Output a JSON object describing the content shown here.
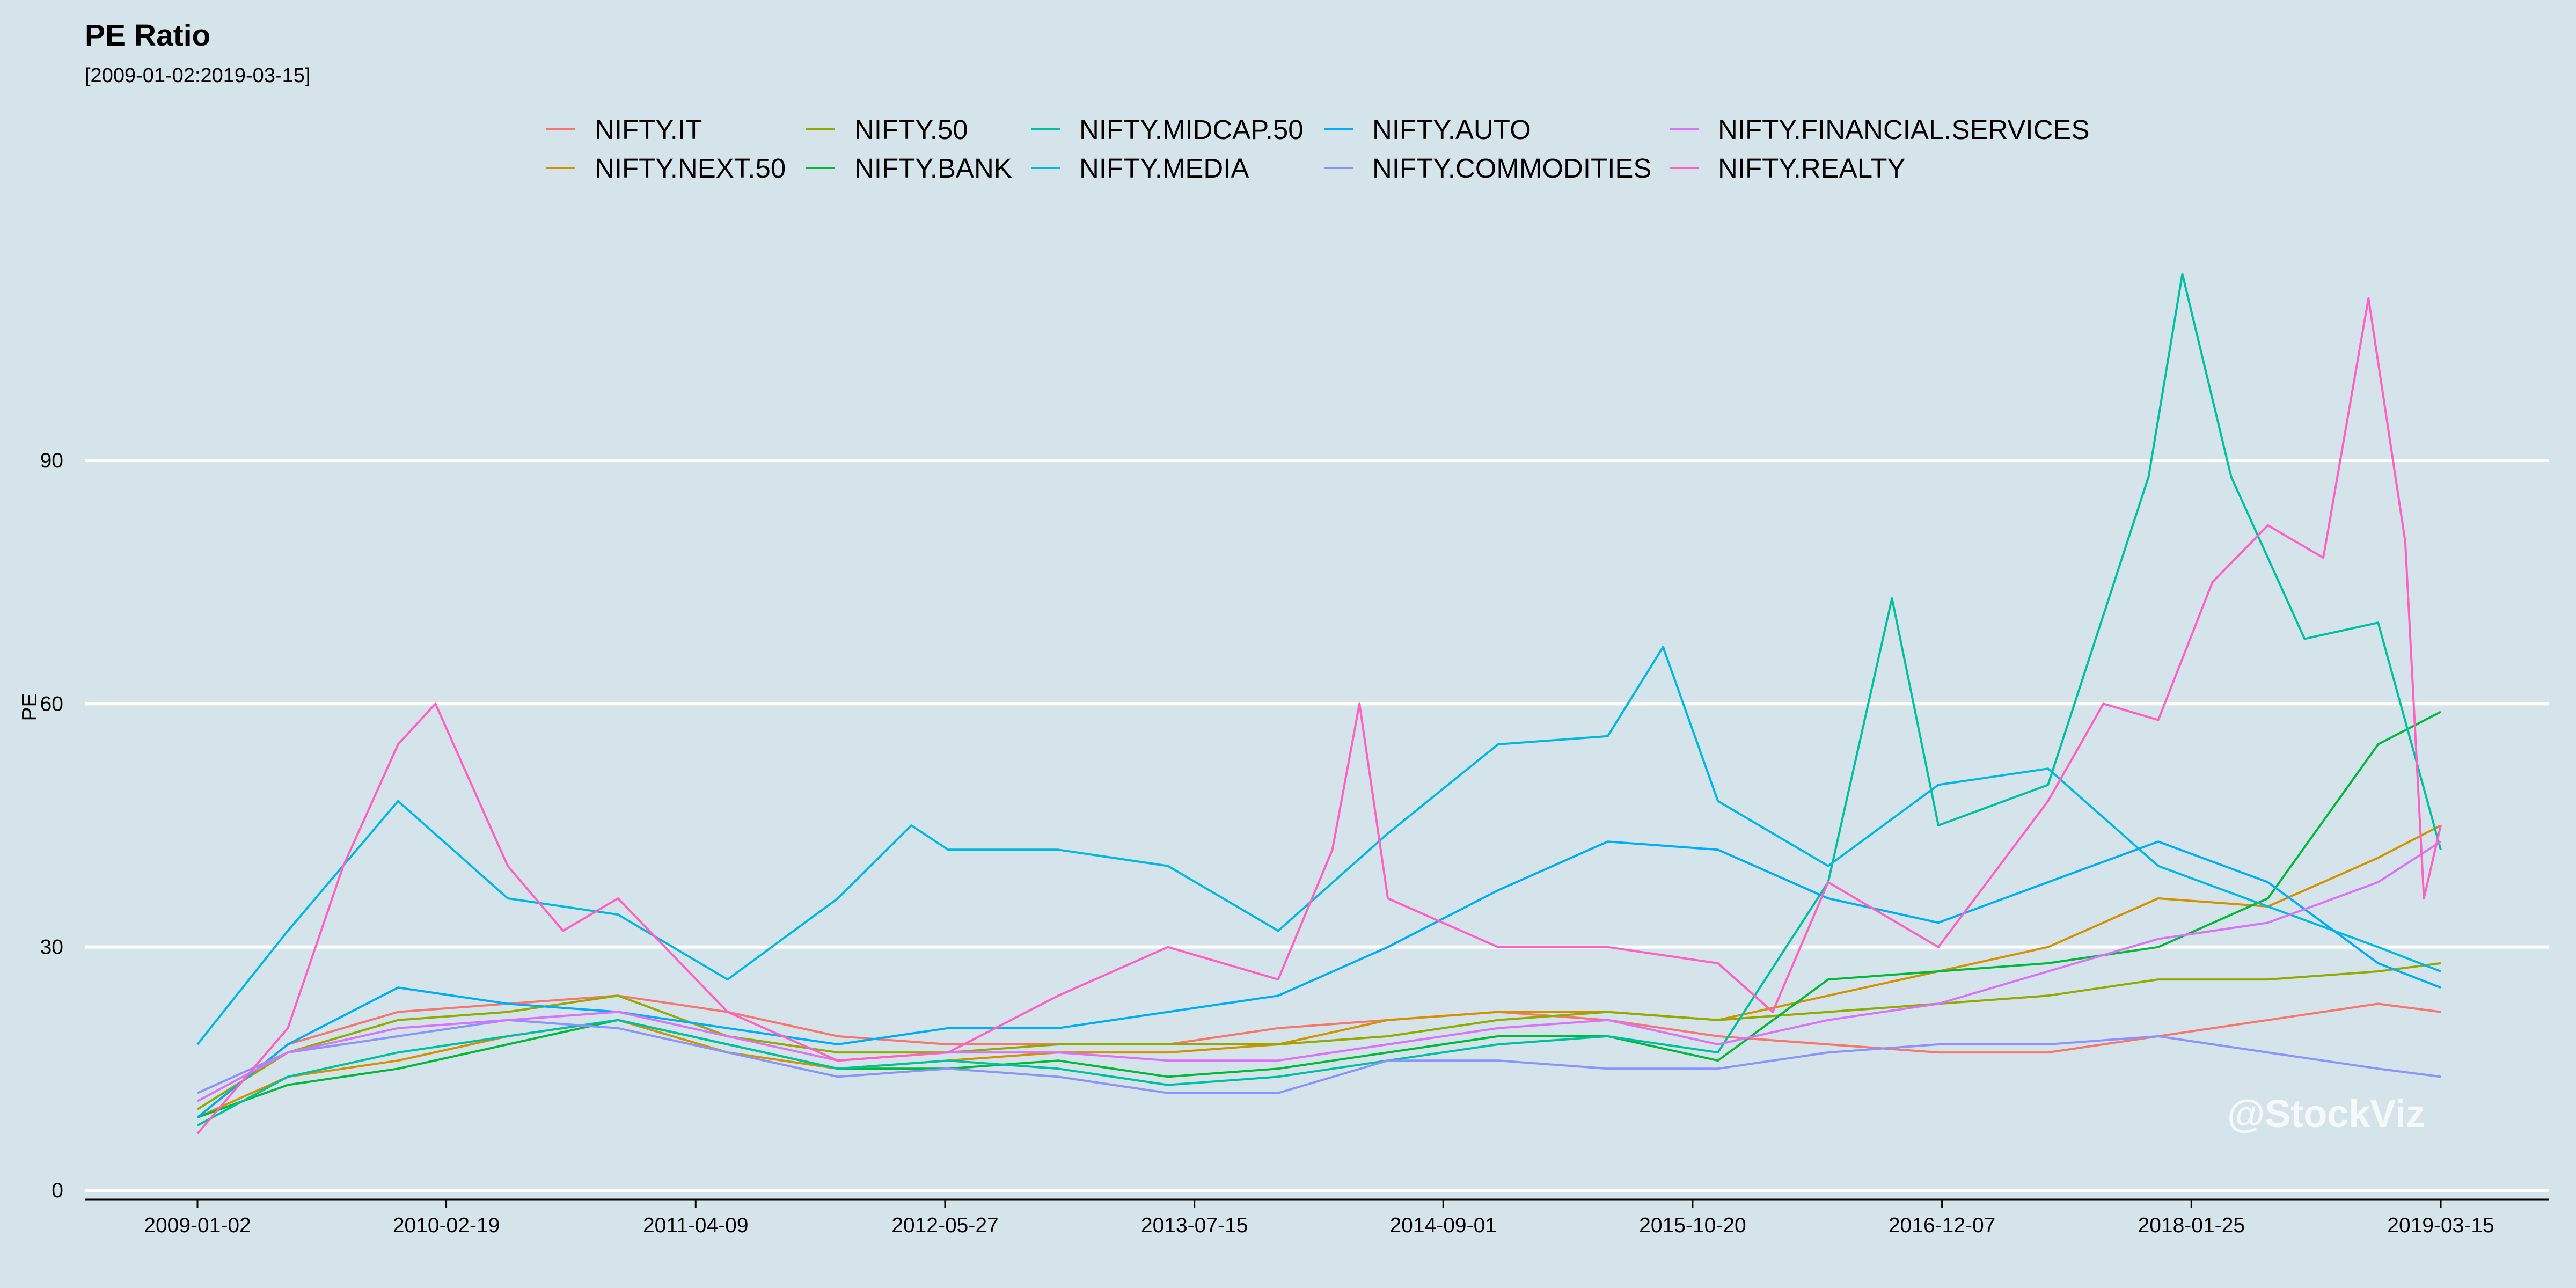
{
  "header": {
    "title": "PE Ratio",
    "subtitle": "[2009-01-02:2019-03-15]"
  },
  "watermark": "@StockViz",
  "colors": {
    "background": "#d5e4eb",
    "gridline": "#ffffff",
    "axis": "#000000"
  },
  "chart_data": {
    "type": "line",
    "title": "PE Ratio",
    "subtitle": "[2009-01-02:2019-03-15]",
    "xlabel": "",
    "ylabel": "PE",
    "x_range": [
      "2009-01-02",
      "2019-03-15"
    ],
    "x_ticks": [
      "2009-01-02",
      "2010-02-19",
      "2011-04-09",
      "2012-05-27",
      "2013-07-15",
      "2014-09-01",
      "2015-10-20",
      "2016-12-07",
      "2018-01-25",
      "2019-03-15"
    ],
    "ylim": [
      0,
      115
    ],
    "y_ticks": [
      0,
      30,
      60,
      90
    ],
    "grid": "horizontal",
    "legend_position": "top",
    "series": [
      {
        "name": "NIFTY.IT",
        "color": "#F8766D",
        "points": [
          [
            "2009-01-02",
            9
          ],
          [
            "2009-06-01",
            18
          ],
          [
            "2009-12-01",
            22
          ],
          [
            "2010-06-01",
            23
          ],
          [
            "2010-12-01",
            24
          ],
          [
            "2011-06-01",
            22
          ],
          [
            "2011-12-01",
            19
          ],
          [
            "2012-06-01",
            18
          ],
          [
            "2012-12-01",
            18
          ],
          [
            "2013-06-01",
            18
          ],
          [
            "2013-12-01",
            20
          ],
          [
            "2014-06-01",
            21
          ],
          [
            "2014-12-01",
            22
          ],
          [
            "2015-06-01",
            21
          ],
          [
            "2015-12-01",
            19
          ],
          [
            "2016-06-01",
            18
          ],
          [
            "2016-12-01",
            17
          ],
          [
            "2017-06-01",
            17
          ],
          [
            "2017-12-01",
            19
          ],
          [
            "2018-06-01",
            21
          ],
          [
            "2018-12-01",
            23
          ],
          [
            "2019-03-15",
            22
          ]
        ]
      },
      {
        "name": "NIFTY.NEXT.50",
        "color": "#D39200",
        "points": [
          [
            "2009-01-02",
            9
          ],
          [
            "2009-06-01",
            14
          ],
          [
            "2009-12-01",
            16
          ],
          [
            "2010-06-01",
            19
          ],
          [
            "2010-12-01",
            21
          ],
          [
            "2011-06-01",
            17
          ],
          [
            "2011-12-01",
            15
          ],
          [
            "2012-06-01",
            16
          ],
          [
            "2012-12-01",
            17
          ],
          [
            "2013-06-01",
            17
          ],
          [
            "2013-12-01",
            18
          ],
          [
            "2014-06-01",
            21
          ],
          [
            "2014-12-01",
            22
          ],
          [
            "2015-06-01",
            22
          ],
          [
            "2015-12-01",
            21
          ],
          [
            "2016-06-01",
            24
          ],
          [
            "2016-12-01",
            27
          ],
          [
            "2017-06-01",
            30
          ],
          [
            "2017-12-01",
            36
          ],
          [
            "2018-06-01",
            35
          ],
          [
            "2018-12-01",
            41
          ],
          [
            "2019-03-15",
            45
          ]
        ]
      },
      {
        "name": "NIFTY.50",
        "color": "#93AA00",
        "points": [
          [
            "2009-01-02",
            10
          ],
          [
            "2009-06-01",
            17
          ],
          [
            "2009-12-01",
            21
          ],
          [
            "2010-06-01",
            22
          ],
          [
            "2010-12-01",
            24
          ],
          [
            "2011-06-01",
            19
          ],
          [
            "2011-12-01",
            17
          ],
          [
            "2012-06-01",
            17
          ],
          [
            "2012-12-01",
            18
          ],
          [
            "2013-06-01",
            18
          ],
          [
            "2013-12-01",
            18
          ],
          [
            "2014-06-01",
            19
          ],
          [
            "2014-12-01",
            21
          ],
          [
            "2015-06-01",
            22
          ],
          [
            "2015-12-01",
            21
          ],
          [
            "2016-06-01",
            22
          ],
          [
            "2016-12-01",
            23
          ],
          [
            "2017-06-01",
            24
          ],
          [
            "2017-12-01",
            26
          ],
          [
            "2018-06-01",
            26
          ],
          [
            "2018-12-01",
            27
          ],
          [
            "2019-03-15",
            28
          ]
        ]
      },
      {
        "name": "NIFTY.BANK",
        "color": "#00BA38",
        "points": [
          [
            "2009-01-02",
            9
          ],
          [
            "2009-06-01",
            13
          ],
          [
            "2009-12-01",
            15
          ],
          [
            "2010-06-01",
            18
          ],
          [
            "2010-12-01",
            21
          ],
          [
            "2011-06-01",
            18
          ],
          [
            "2011-12-01",
            15
          ],
          [
            "2012-06-01",
            15
          ],
          [
            "2012-12-01",
            16
          ],
          [
            "2013-06-01",
            14
          ],
          [
            "2013-12-01",
            15
          ],
          [
            "2014-06-01",
            17
          ],
          [
            "2014-12-01",
            19
          ],
          [
            "2015-06-01",
            19
          ],
          [
            "2015-12-01",
            16
          ],
          [
            "2016-06-01",
            26
          ],
          [
            "2016-12-01",
            27
          ],
          [
            "2017-06-01",
            28
          ],
          [
            "2017-12-01",
            30
          ],
          [
            "2018-06-01",
            36
          ],
          [
            "2018-12-01",
            55
          ],
          [
            "2019-03-15",
            59
          ]
        ]
      },
      {
        "name": "NIFTY.MIDCAP.50",
        "color": "#00C19F",
        "points": [
          [
            "2009-01-02",
            8
          ],
          [
            "2009-06-01",
            14
          ],
          [
            "2009-12-01",
            17
          ],
          [
            "2010-06-01",
            19
          ],
          [
            "2010-12-01",
            21
          ],
          [
            "2011-06-01",
            18
          ],
          [
            "2011-12-01",
            15
          ],
          [
            "2012-06-01",
            16
          ],
          [
            "2012-12-01",
            15
          ],
          [
            "2013-06-01",
            13
          ],
          [
            "2013-12-01",
            14
          ],
          [
            "2014-06-01",
            16
          ],
          [
            "2014-12-01",
            18
          ],
          [
            "2015-06-01",
            19
          ],
          [
            "2015-12-01",
            17
          ],
          [
            "2016-06-01",
            38
          ],
          [
            "2016-09-15",
            73
          ],
          [
            "2016-12-01",
            45
          ],
          [
            "2017-06-01",
            50
          ],
          [
            "2017-11-15",
            88
          ],
          [
            "2018-01-10",
            113
          ],
          [
            "2018-04-01",
            88
          ],
          [
            "2018-08-01",
            68
          ],
          [
            "2018-12-01",
            70
          ],
          [
            "2019-03-15",
            42
          ]
        ]
      },
      {
        "name": "NIFTY.MEDIA",
        "color": "#00B9E3",
        "points": [
          [
            "2009-01-02",
            18
          ],
          [
            "2009-06-01",
            32
          ],
          [
            "2009-12-01",
            48
          ],
          [
            "2010-06-01",
            36
          ],
          [
            "2010-12-01",
            34
          ],
          [
            "2011-06-01",
            26
          ],
          [
            "2011-12-01",
            36
          ],
          [
            "2012-04-01",
            45
          ],
          [
            "2012-06-01",
            42
          ],
          [
            "2012-12-01",
            42
          ],
          [
            "2013-06-01",
            40
          ],
          [
            "2013-12-01",
            32
          ],
          [
            "2014-06-01",
            44
          ],
          [
            "2014-12-01",
            55
          ],
          [
            "2015-06-01",
            56
          ],
          [
            "2015-09-01",
            67
          ],
          [
            "2015-12-01",
            48
          ],
          [
            "2016-06-01",
            40
          ],
          [
            "2016-12-01",
            50
          ],
          [
            "2017-06-01",
            52
          ],
          [
            "2017-12-01",
            40
          ],
          [
            "2018-06-01",
            35
          ],
          [
            "2018-12-01",
            30
          ],
          [
            "2019-03-15",
            27
          ]
        ]
      },
      {
        "name": "NIFTY.AUTO",
        "color": "#00ADFA",
        "points": [
          [
            "2009-01-02",
            9
          ],
          [
            "2009-06-01",
            18
          ],
          [
            "2009-12-01",
            25
          ],
          [
            "2010-06-01",
            23
          ],
          [
            "2010-12-01",
            22
          ],
          [
            "2011-06-01",
            20
          ],
          [
            "2011-12-01",
            18
          ],
          [
            "2012-06-01",
            20
          ],
          [
            "2012-12-01",
            20
          ],
          [
            "2013-06-01",
            22
          ],
          [
            "2013-12-01",
            24
          ],
          [
            "2014-06-01",
            30
          ],
          [
            "2014-12-01",
            37
          ],
          [
            "2015-06-01",
            43
          ],
          [
            "2015-12-01",
            42
          ],
          [
            "2016-06-01",
            36
          ],
          [
            "2016-12-01",
            33
          ],
          [
            "2017-06-01",
            38
          ],
          [
            "2017-12-01",
            43
          ],
          [
            "2018-06-01",
            38
          ],
          [
            "2018-12-01",
            28
          ],
          [
            "2019-03-15",
            25
          ]
        ]
      },
      {
        "name": "NIFTY.COMMODITIES",
        "color": "#8B93FF",
        "points": [
          [
            "2009-01-02",
            12
          ],
          [
            "2009-06-01",
            17
          ],
          [
            "2009-12-01",
            19
          ],
          [
            "2010-06-01",
            21
          ],
          [
            "2010-12-01",
            20
          ],
          [
            "2011-06-01",
            17
          ],
          [
            "2011-12-01",
            14
          ],
          [
            "2012-06-01",
            15
          ],
          [
            "2012-12-01",
            14
          ],
          [
            "2013-06-01",
            12
          ],
          [
            "2013-12-01",
            12
          ],
          [
            "2014-06-01",
            16
          ],
          [
            "2014-12-01",
            16
          ],
          [
            "2015-06-01",
            15
          ],
          [
            "2015-12-01",
            15
          ],
          [
            "2016-06-01",
            17
          ],
          [
            "2016-12-01",
            18
          ],
          [
            "2017-06-01",
            18
          ],
          [
            "2017-12-01",
            19
          ],
          [
            "2018-06-01",
            17
          ],
          [
            "2018-12-01",
            15
          ],
          [
            "2019-03-15",
            14
          ]
        ]
      },
      {
        "name": "NIFTY.FINANCIAL.SERVICES",
        "color": "#DB72FB",
        "points": [
          [
            "2009-01-02",
            11
          ],
          [
            "2009-06-01",
            17
          ],
          [
            "2009-12-01",
            20
          ],
          [
            "2010-06-01",
            21
          ],
          [
            "2010-12-01",
            22
          ],
          [
            "2011-06-01",
            19
          ],
          [
            "2011-12-01",
            16
          ],
          [
            "2012-06-01",
            17
          ],
          [
            "2012-12-01",
            17
          ],
          [
            "2013-06-01",
            16
          ],
          [
            "2013-12-01",
            16
          ],
          [
            "2014-06-01",
            18
          ],
          [
            "2014-12-01",
            20
          ],
          [
            "2015-06-01",
            21
          ],
          [
            "2015-12-01",
            18
          ],
          [
            "2016-06-01",
            21
          ],
          [
            "2016-12-01",
            23
          ],
          [
            "2017-06-01",
            27
          ],
          [
            "2017-12-01",
            31
          ],
          [
            "2018-06-01",
            33
          ],
          [
            "2018-12-01",
            38
          ],
          [
            "2019-03-15",
            43
          ]
        ]
      },
      {
        "name": "NIFTY.REALTY",
        "color": "#FF61C3",
        "points": [
          [
            "2009-01-02",
            7
          ],
          [
            "2009-06-01",
            20
          ],
          [
            "2009-09-01",
            40
          ],
          [
            "2009-12-01",
            55
          ],
          [
            "2010-02-01",
            60
          ],
          [
            "2010-06-01",
            40
          ],
          [
            "2010-09-01",
            32
          ],
          [
            "2010-12-01",
            36
          ],
          [
            "2011-06-01",
            22
          ],
          [
            "2011-12-01",
            16
          ],
          [
            "2012-06-01",
            17
          ],
          [
            "2012-12-01",
            24
          ],
          [
            "2013-06-01",
            30
          ],
          [
            "2013-12-01",
            26
          ],
          [
            "2014-03-01",
            42
          ],
          [
            "2014-04-15",
            60
          ],
          [
            "2014-06-01",
            36
          ],
          [
            "2014-12-01",
            30
          ],
          [
            "2015-06-01",
            30
          ],
          [
            "2015-12-01",
            28
          ],
          [
            "2016-03-01",
            22
          ],
          [
            "2016-06-01",
            38
          ],
          [
            "2016-12-01",
            30
          ],
          [
            "2017-06-01",
            48
          ],
          [
            "2017-09-01",
            60
          ],
          [
            "2017-12-01",
            58
          ],
          [
            "2018-03-01",
            75
          ],
          [
            "2018-06-01",
            82
          ],
          [
            "2018-09-01",
            78
          ],
          [
            "2018-11-15",
            110
          ],
          [
            "2019-01-15",
            80
          ],
          [
            "2019-02-15",
            36
          ],
          [
            "2019-03-15",
            45
          ]
        ]
      }
    ]
  }
}
